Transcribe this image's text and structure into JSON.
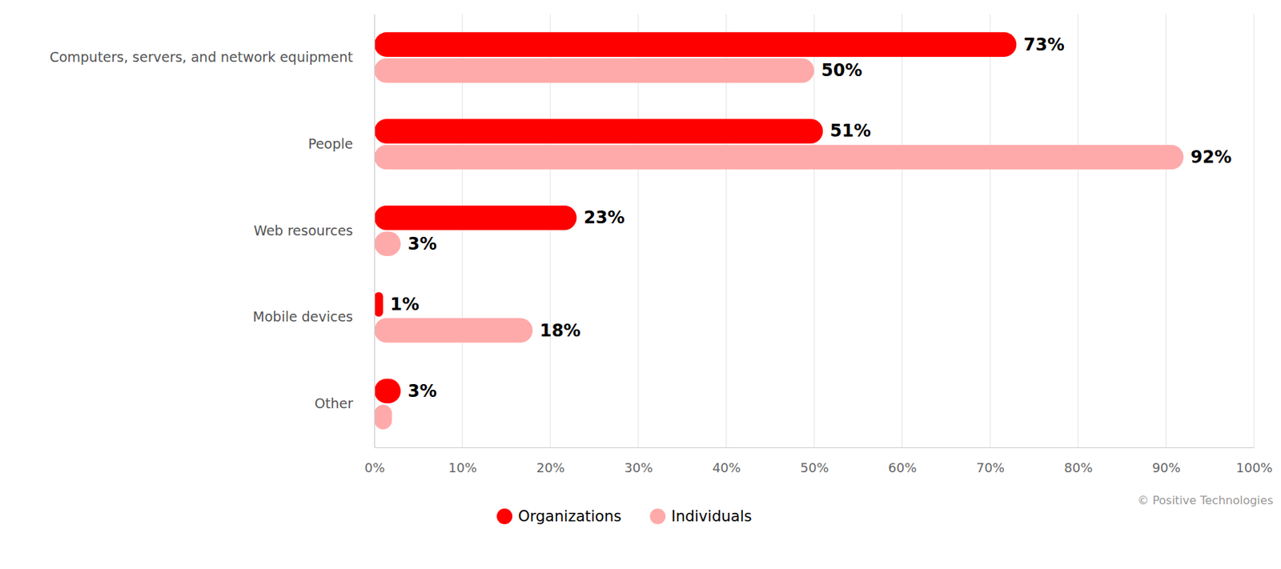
{
  "chart_data": {
    "type": "bar",
    "orientation": "horizontal",
    "categories": [
      "Computers, servers, and network equipment",
      "People",
      "Web resources",
      "Mobile devices",
      "Other"
    ],
    "series": [
      {
        "name": "Organizations",
        "color": "#ff0000",
        "values": [
          73,
          51,
          23,
          1,
          3
        ],
        "value_labels": [
          "73%",
          "51%",
          "23%",
          "1%",
          "3%"
        ]
      },
      {
        "name": "Individuals",
        "color": "#ffaaaa",
        "values": [
          50,
          92,
          3,
          18,
          2
        ],
        "value_labels": [
          "50%",
          "92%",
          "3%",
          "18%",
          null
        ]
      }
    ],
    "xlim": [
      0,
      100
    ],
    "xticks": [
      {
        "value": 0,
        "label": "0%"
      },
      {
        "value": 10,
        "label": "10%"
      },
      {
        "value": 20,
        "label": "20%"
      },
      {
        "value": 30,
        "label": "30%"
      },
      {
        "value": 40,
        "label": "40%"
      },
      {
        "value": 50,
        "label": "50%"
      },
      {
        "value": 60,
        "label": "60%"
      },
      {
        "value": 70,
        "label": "70%"
      },
      {
        "value": 80,
        "label": "80%"
      },
      {
        "value": 90,
        "label": "90%"
      },
      {
        "value": 100,
        "label": "100%"
      }
    ],
    "grid": true,
    "data_labels": true,
    "legend": "bottom",
    "annotations": [
      "© Positive Technologies"
    ]
  }
}
